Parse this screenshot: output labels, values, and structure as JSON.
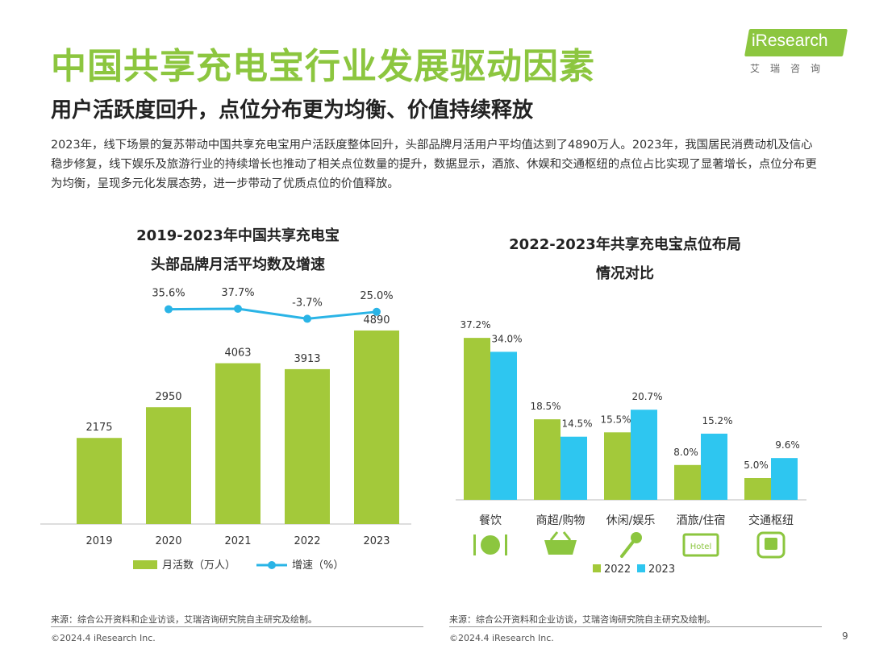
{
  "page": {
    "title": "中国共享充电宝行业发展驱动因素",
    "subtitle": "用户活跃度回升，点位分布更为均衡、价值持续释放",
    "intro": "2023年，线下场景的复苏带动中国共享充电宝用户活跃度整体回升，头部品牌月活用户平均值达到了4890万人。2023年，我国居民消费动机及信心稳步修复，线下娱乐及旅游行业的持续增长也推动了相关点位数量的提升，数据显示，酒旅、休娱和交通枢纽的点位占比实现了显著增长，点位分布更为均衡，呈现多元化发展态势，进一步带动了优质点位的价值释放。",
    "logo_text": "iResearch",
    "logo_sub": "艾瑞咨询",
    "page_number": "9"
  },
  "footer": {
    "source_left": "来源：综合公开资料和企业访谈，艾瑞咨询研究院自主研究及绘制。",
    "source_right": "来源：综合公开资料和企业访谈，艾瑞咨询研究院自主研究及绘制。",
    "copyright_left": "©2024.4 iResearch Inc.",
    "copyright_right": "©2024.4 iResearch Inc."
  },
  "chart_data": [
    {
      "type": "bar",
      "title_line1": "2019-2023年中国共享充电宝",
      "title_line2": "头部品牌月活平均数及增速",
      "categories": [
        "2019",
        "2020",
        "2021",
        "2022",
        "2023"
      ],
      "series": [
        {
          "name": "月活数（万人）",
          "type": "bar",
          "values": [
            2175,
            2950,
            4063,
            3913,
            4890
          ],
          "labels": [
            "2175",
            "2950",
            "4063",
            "3913",
            "4890"
          ],
          "color": "#a3c93a"
        },
        {
          "name": "增速（%）",
          "type": "line",
          "values": [
            null,
            35.6,
            37.7,
            -3.7,
            25.0
          ],
          "labels": [
            "",
            "35.6%",
            "37.7%",
            "-3.7%",
            "25.0%"
          ],
          "color": "#2ab4e6"
        }
      ],
      "legend_position": "bottom"
    },
    {
      "type": "bar",
      "title_line1": "2022-2023年共享充电宝点位布局",
      "title_line2": "情况对比",
      "categories": [
        "餐饮",
        "商超/购物",
        "休闲/娱乐",
        "酒旅/住宿",
        "交通枢纽"
      ],
      "icons": [
        "dining-icon",
        "shopping-basket-icon",
        "microphone-icon",
        "hotel-icon",
        "train-icon"
      ],
      "series": [
        {
          "name": "2022",
          "values": [
            37.2,
            18.5,
            15.5,
            8.0,
            5.0
          ],
          "labels": [
            "37.2%",
            "18.5%",
            "15.5%",
            "8.0%",
            "5.0%"
          ],
          "color": "#a3c93a"
        },
        {
          "name": "2023",
          "values": [
            34.0,
            14.5,
            20.7,
            15.2,
            9.6
          ],
          "labels": [
            "34.0%",
            "14.5%",
            "20.7%",
            "15.2%",
            "9.6%"
          ],
          "color": "#2ec6f0"
        }
      ],
      "legend_position": "bottom"
    }
  ]
}
